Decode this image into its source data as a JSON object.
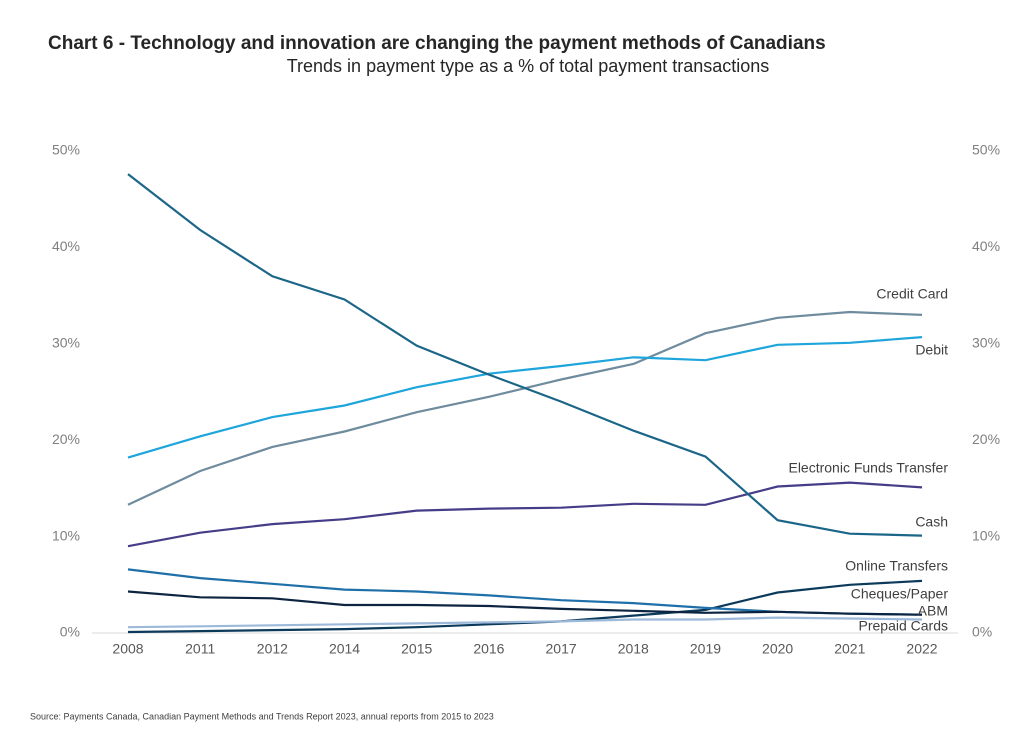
{
  "chart_data": {
    "type": "line",
    "title": "Chart 6 - Technology and innovation are changing the payment methods of Canadians",
    "subtitle": "Trends in payment type as a % of total payment transactions",
    "source": "Source: Payments Canada, Canadian Payment Methods and Trends Report 2023, annual reports from 2015 to 2023",
    "categories": [
      "2008",
      "2011",
      "2012",
      "2014",
      "2015",
      "2016",
      "2017",
      "2018",
      "2019",
      "2020",
      "2021",
      "2022"
    ],
    "ylim": [
      0,
      50
    ],
    "yticks": [
      {
        "value": 0,
        "label": "0%"
      },
      {
        "value": 10,
        "label": "10%"
      },
      {
        "value": 20,
        "label": "20%"
      },
      {
        "value": 30,
        "label": "30%"
      },
      {
        "value": 40,
        "label": "40%"
      },
      {
        "value": 50,
        "label": "50%"
      }
    ],
    "y2lim": [
      0,
      50
    ],
    "y2ticks": [
      {
        "value": 0,
        "label": "0%"
      },
      {
        "value": 10,
        "label": "10%"
      },
      {
        "value": 20,
        "label": "20%"
      },
      {
        "value": 30,
        "label": "30%"
      },
      {
        "value": 40,
        "label": "40%"
      },
      {
        "value": 50,
        "label": "50%"
      }
    ],
    "series": [
      {
        "name": "Credit Card",
        "color": "#6f8c9e",
        "values": [
          13.3,
          16.8,
          19.3,
          20.9,
          22.9,
          24.5,
          26.3,
          27.9,
          31.1,
          32.7,
          33.3,
          33.0
        ]
      },
      {
        "name": "Debit",
        "color": "#1ea5dc",
        "values": [
          18.2,
          20.4,
          22.4,
          23.6,
          25.5,
          26.9,
          27.7,
          28.6,
          28.3,
          29.9,
          30.1,
          30.7
        ]
      },
      {
        "name": "Electronic Funds Transfer",
        "color": "#463d88",
        "values": [
          9.0,
          10.4,
          11.3,
          11.8,
          12.7,
          12.9,
          13.0,
          13.4,
          13.3,
          15.2,
          15.6,
          15.1
        ]
      },
      {
        "name": "Cash",
        "color": "#1b6688",
        "values": [
          47.6,
          41.8,
          37.0,
          34.6,
          29.8,
          26.8,
          24.0,
          21.0,
          18.3,
          11.7,
          10.3,
          10.1
        ]
      },
      {
        "name": "Online Transfers",
        "color": "#0c3a5a",
        "values": [
          0.1,
          0.2,
          0.3,
          0.4,
          0.6,
          0.9,
          1.2,
          1.8,
          2.4,
          4.2,
          5.0,
          5.4
        ]
      },
      {
        "name": "Cheques/Paper",
        "color": "#1f6fa8",
        "values": [
          6.6,
          5.7,
          5.1,
          4.5,
          4.3,
          3.9,
          3.4,
          3.1,
          2.6,
          2.2,
          2.0,
          1.9
        ]
      },
      {
        "name": "ABM",
        "color": "#0d2440",
        "values": [
          4.3,
          3.7,
          3.6,
          2.9,
          2.9,
          2.8,
          2.5,
          2.3,
          2.1,
          2.2,
          2.0,
          1.9
        ]
      },
      {
        "name": "Prepaid Cards",
        "color": "#9db9da",
        "values": [
          0.6,
          0.7,
          0.8,
          0.9,
          1.0,
          1.1,
          1.2,
          1.4,
          1.4,
          1.6,
          1.5,
          1.4
        ]
      }
    ]
  }
}
